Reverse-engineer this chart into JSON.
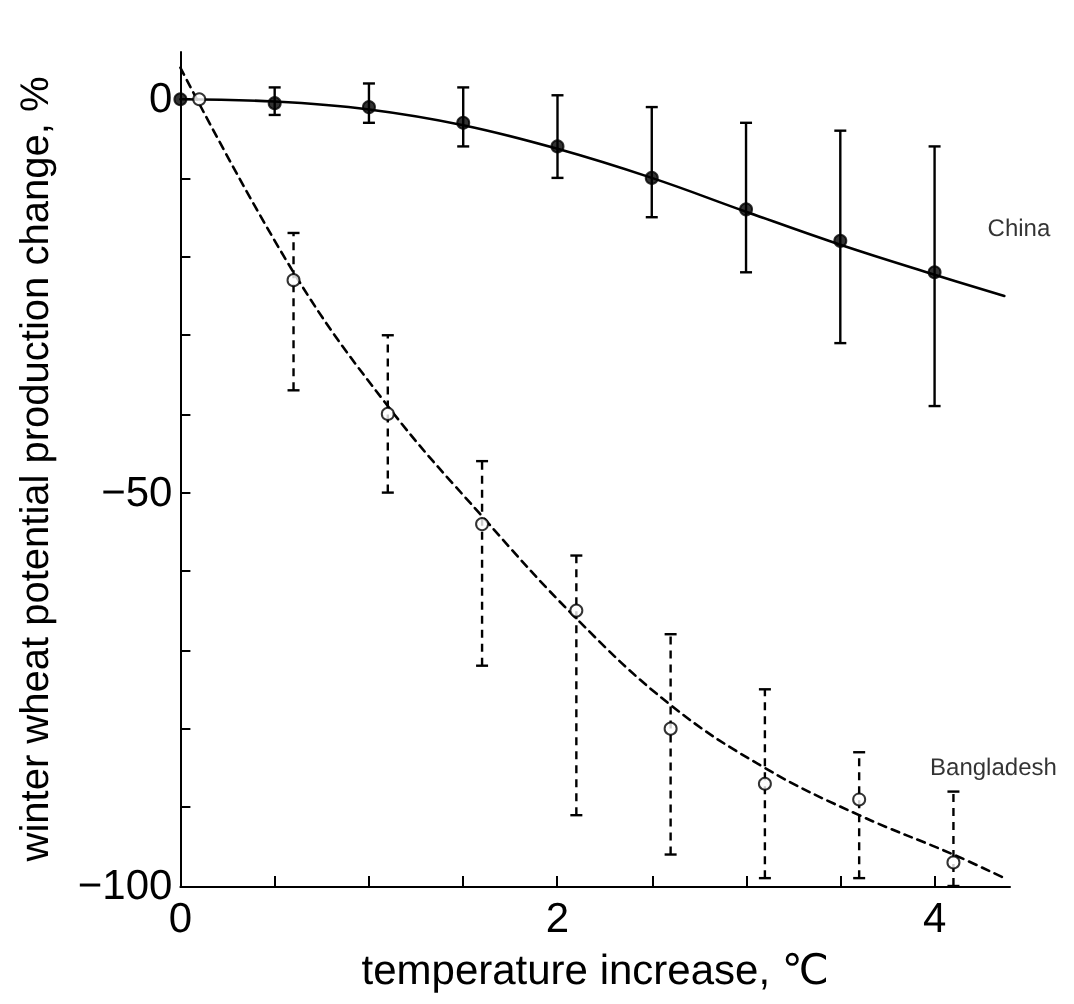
{
  "chart_data": {
    "type": "scatter",
    "xlabel": "temperature increase, ℃",
    "ylabel": "winter wheat potential production change, %",
    "xlim": [
      0,
      4.4
    ],
    "ylim": [
      -100,
      6
    ],
    "xticks": [
      0,
      {
        "value": 0.5,
        "label": null
      },
      {
        "value": 1,
        "label": null
      },
      {
        "value": 1.5,
        "label": null
      },
      2,
      {
        "value": 2.5,
        "label": null
      },
      {
        "value": 3,
        "label": null
      },
      {
        "value": 3.5,
        "label": null
      },
      4
    ],
    "yticks": [
      -100,
      {
        "value": -90,
        "label": null
      },
      {
        "value": -80,
        "label": null
      },
      {
        "value": -70,
        "label": null
      },
      {
        "value": -60,
        "label": null
      },
      -50,
      {
        "value": -40,
        "label": null
      },
      {
        "value": -30,
        "label": null
      },
      {
        "value": -20,
        "label": null
      },
      {
        "value": -10,
        "label": null
      },
      0
    ],
    "grid": false,
    "legend": false,
    "series": [
      {
        "name": "China",
        "color": "#000000",
        "marker": "circle",
        "line_style": "solid",
        "x": [
          0,
          0.5,
          1,
          1.5,
          2,
          2.5,
          3,
          3.5,
          4
        ],
        "values": [
          0,
          -0.5,
          -1,
          -3,
          -6,
          -10,
          -14,
          -18,
          -22
        ],
        "errors": [
          null,
          [
            -2,
            1.5
          ],
          [
            -3,
            2
          ],
          [
            -6,
            1.5
          ],
          [
            -10,
            0.5
          ],
          [
            -15,
            -1
          ],
          [
            -22,
            -3
          ],
          [
            -31,
            -4
          ],
          [
            -39,
            -6
          ]
        ]
      },
      {
        "type": "line",
        "color": "#000000",
        "marker": "none",
        "line_style": "solid",
        "x": [
          0,
          0.5,
          1,
          1.5,
          2,
          2.5,
          3,
          3.5,
          4,
          4.37
        ],
        "values": [
          0,
          -0.3,
          -1.3,
          -3.3,
          -6.3,
          -10,
          -14.3,
          -18.5,
          -22.3,
          -25
        ]
      },
      {
        "name": "Bangladesh",
        "color": "#000000",
        "marker": "circle",
        "line_style": "dashed",
        "x": [
          0.1,
          0.6,
          1.1,
          1.6,
          2.1,
          2.6,
          3.1,
          3.6,
          4.1
        ],
        "values": [
          0,
          -23,
          -40,
          -54,
          -65,
          -80,
          -87,
          -89,
          -97
        ],
        "errors": [
          null,
          [
            -37,
            -17
          ],
          [
            -50,
            -30
          ],
          [
            -72,
            -46
          ],
          [
            -91,
            -58
          ],
          [
            -96,
            -68
          ],
          [
            -99,
            -75
          ],
          [
            -99,
            -83
          ],
          [
            -100,
            -88
          ]
        ]
      },
      {
        "type": "line",
        "color": "#000000",
        "marker": "none",
        "line_style": "dashed",
        "x": [
          0,
          0.6,
          1.1,
          1.6,
          2.1,
          2.6,
          3.1,
          3.6,
          4.1,
          4.37
        ],
        "values": [
          4,
          -22,
          -39,
          -53,
          -66,
          -77,
          -85,
          -91,
          -96,
          -99
        ]
      }
    ]
  }
}
